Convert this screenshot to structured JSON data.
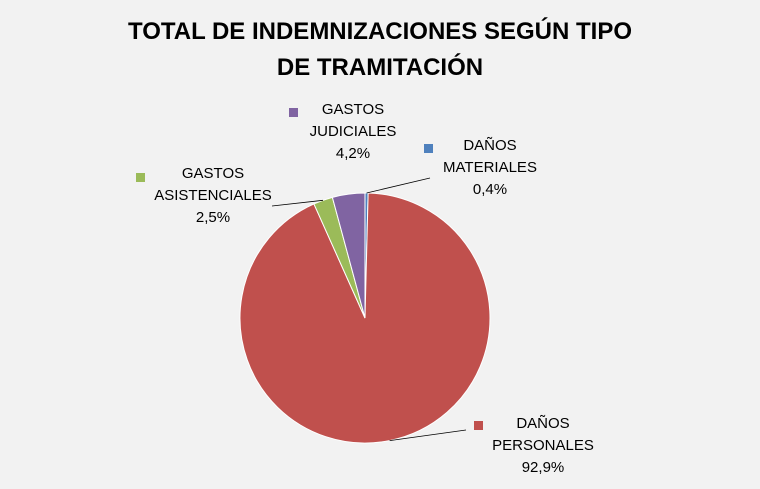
{
  "chart_data": {
    "type": "pie",
    "title": "TOTAL DE INDEMNIZACIONES SEGÚN  TIPO\nDE TRAMITACIÓN",
    "slices": [
      {
        "name": "DAÑOS MATERIALES",
        "lines": [
          "DAÑOS",
          "MATERIALES"
        ],
        "value": 0.4,
        "label": "0,4%",
        "color": "#4f81bd"
      },
      {
        "name": "DAÑOS PERSONALES",
        "lines": [
          "DAÑOS",
          "PERSONALES"
        ],
        "value": 92.9,
        "label": "92,9%",
        "color": "#c0504d"
      },
      {
        "name": "GASTOS ASISTENCIALES",
        "lines": [
          "GASTOS",
          "ASISTENCIALES"
        ],
        "value": 2.5,
        "label": "2,5%",
        "color": "#9bbb59"
      },
      {
        "name": "GASTOS JUDICIALES",
        "lines": [
          "GASTOS",
          "JUDICIALES"
        ],
        "value": 4.2,
        "label": "4,2%",
        "color": "#8064a2"
      }
    ],
    "start_angle": "12 o'clock",
    "direction": "clockwise",
    "legend": "none",
    "data_labels": "category name with percentage and leader lines"
  }
}
